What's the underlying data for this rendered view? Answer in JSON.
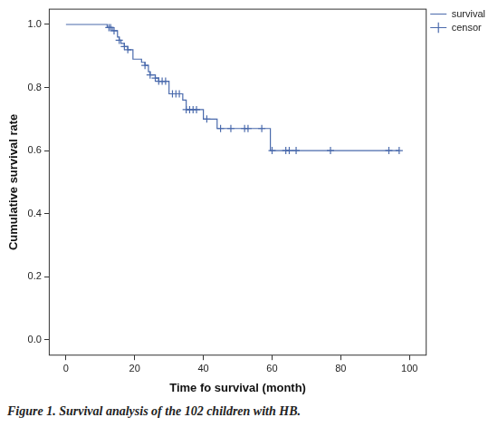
{
  "chart_data": {
    "type": "line",
    "caption": "Figure 1. Survival analysis of the 102 children with HB.",
    "x_label": "Time fo survival (month)",
    "y_label": "Cumulative survival rate",
    "xlim": [
      -5,
      105
    ],
    "xticks": [
      0,
      20,
      40,
      60,
      80,
      100
    ],
    "ylim": [
      -0.05,
      1.05
    ],
    "yticks": [
      {
        "value": 0,
        "label": "0.0"
      },
      {
        "value": 0.2,
        "label": "0.2"
      },
      {
        "value": 0.4,
        "label": "0.4"
      },
      {
        "value": 0.6,
        "label": "0.6"
      },
      {
        "value": 0.8,
        "label": "0.8"
      },
      {
        "value": 1,
        "label": "1.0"
      }
    ],
    "grid": false,
    "legend": "right",
    "series": [
      {
        "name": "survival",
        "color": "#4a6aac",
        "line_style": "step",
        "x": [
          0,
          12,
          13.5,
          15,
          15.5,
          16,
          17,
          18,
          19.5,
          22,
          23,
          24,
          24.5,
          26,
          27,
          30,
          34,
          35,
          40,
          44,
          59.5,
          97
        ],
        "values": [
          1,
          0.99,
          0.98,
          0.96,
          0.95,
          0.94,
          0.93,
          0.92,
          0.89,
          0.88,
          0.87,
          0.85,
          0.84,
          0.83,
          0.82,
          0.78,
          0.76,
          0.73,
          0.7,
          0.67,
          0.6,
          0.6
        ]
      },
      {
        "name": "censor",
        "type": "scatter",
        "marker": "+",
        "color": "#4a6aac",
        "x": [
          12.5,
          13,
          14,
          15.5,
          17,
          18,
          23,
          24.5,
          26,
          27,
          28,
          29,
          31,
          32,
          33,
          35,
          36,
          37,
          38,
          41,
          45,
          48,
          52,
          53,
          57,
          60,
          64,
          65,
          67,
          77,
          94,
          97
        ],
        "values": [
          0.99,
          0.99,
          0.98,
          0.95,
          0.93,
          0.92,
          0.87,
          0.84,
          0.83,
          0.82,
          0.82,
          0.82,
          0.78,
          0.78,
          0.78,
          0.73,
          0.73,
          0.73,
          0.73,
          0.7,
          0.67,
          0.67,
          0.67,
          0.67,
          0.67,
          0.6,
          0.6,
          0.6,
          0.6,
          0.6,
          0.6,
          0.6
        ]
      }
    ]
  }
}
